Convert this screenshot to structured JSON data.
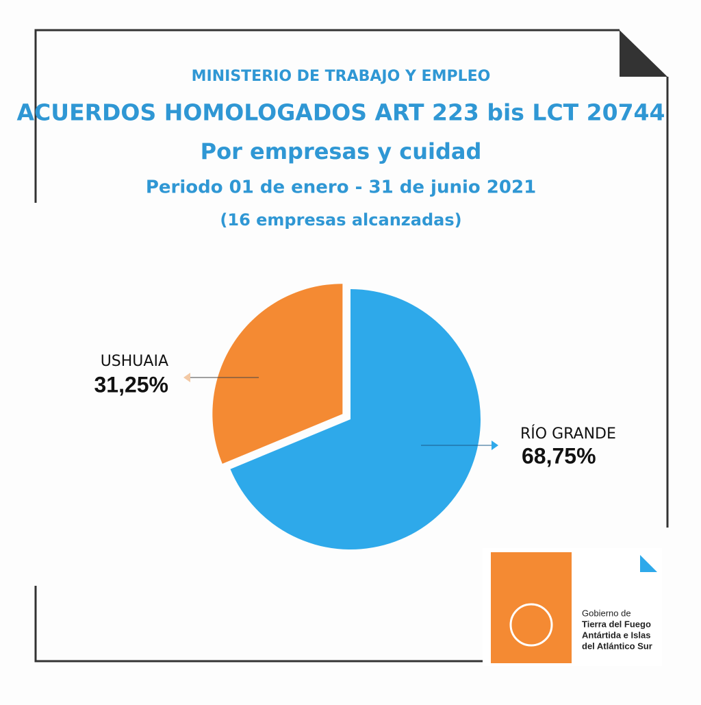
{
  "header": {
    "ministry": "MINISTERIO DE TRABAJO Y EMPLEO",
    "title": "ACUERDOS HOMOLOGADOS ART 223 bis LCT  20744",
    "subtitle": "Por empresas y cuidad",
    "period": "Periodo  01 de enero - 31 de junio 2021",
    "note": "(16 empresas alcanzadas)"
  },
  "chart_data": {
    "type": "pie",
    "categories": [
      "RÍO GRANDE",
      "USHUAIA"
    ],
    "values": [
      68.75,
      31.25
    ],
    "value_labels": [
      "68,75%",
      "31,25%"
    ],
    "colors": [
      "#2ea9ea",
      "#f48a33"
    ]
  },
  "logo": {
    "lines": [
      "Gobierno de",
      "Tierra del Fuego",
      "Antártida e Islas",
      "del Atlántico Sur"
    ]
  }
}
